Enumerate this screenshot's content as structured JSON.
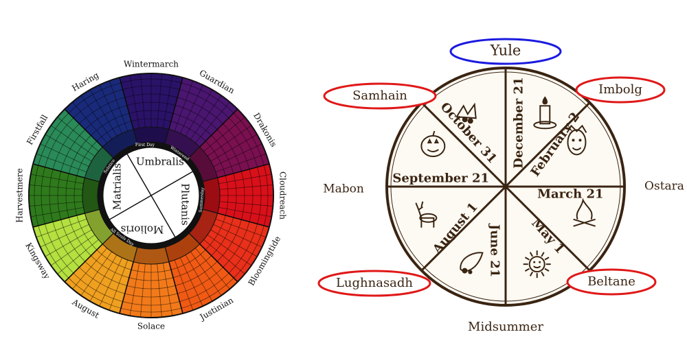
{
  "left_wheel": {
    "months": [
      {
        "name": "Wintermarch",
        "color": "#2a1268"
      },
      {
        "name": "Guardian",
        "color": "#4a1670"
      },
      {
        "name": "Drakonis",
        "color": "#7a1050"
      },
      {
        "name": "Cloudreach",
        "color": "#d8101a"
      },
      {
        "name": "Bloomingtide",
        "color": "#e8301a"
      },
      {
        "name": "Justinian",
        "color": "#f05a14"
      },
      {
        "name": "Solace",
        "color": "#f27a1a"
      },
      {
        "name": "August",
        "color": "#f0a020"
      },
      {
        "name": "Kingsway",
        "color": "#b4e040"
      },
      {
        "name": "Harvestmere",
        "color": "#2f7a1c"
      },
      {
        "name": "Firstfall",
        "color": "#2a8a58"
      },
      {
        "name": "Haring",
        "color": "#1a2a7a"
      }
    ],
    "seasons": [
      "Umbralis",
      "Plutanis",
      "Molioris",
      "Matrialis"
    ],
    "markers": [
      "First Day",
      "Winterend",
      "Summerday",
      "All Souls Day",
      "Solstice"
    ]
  },
  "right_wheel": {
    "festivals": [
      {
        "name": "Yule",
        "circled": "blue"
      },
      {
        "name": "Imbolg",
        "circled": "red"
      },
      {
        "name": "Ostara",
        "circled": "none"
      },
      {
        "name": "Beltane",
        "circled": "red"
      },
      {
        "name": "Midsummer",
        "circled": "none"
      },
      {
        "name": "Lughnasadh",
        "circled": "red"
      },
      {
        "name": "Mabon",
        "circled": "none"
      },
      {
        "name": "Samhain",
        "circled": "red"
      }
    ],
    "dates": [
      "December 21",
      "February 2",
      "March 21",
      "May 1",
      "June 21",
      "August 1",
      "September 21",
      "October 31"
    ],
    "symbol_icons": [
      "holly-icon",
      "candle-icon",
      "green-man-icon",
      "bonfire-icon",
      "sun-icon",
      "cornucopia-icon",
      "deer-icon",
      "pumpkin-icon"
    ],
    "colors": {
      "blue_ring": "#1a1ae0",
      "red_ring": "#e01818",
      "ink": "#3a2412"
    }
  }
}
